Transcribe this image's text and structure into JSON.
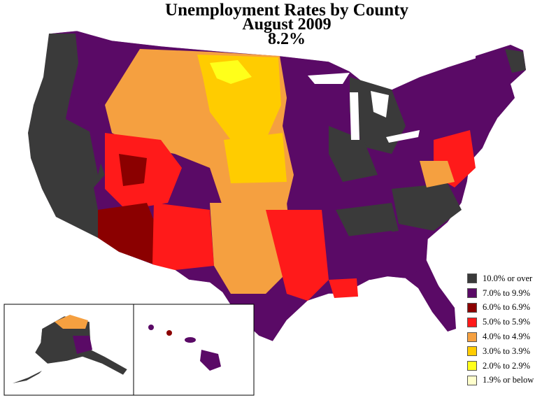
{
  "title": {
    "line1": "Unemployment Rates by County",
    "line2": "August 2009",
    "line3": "8.2%"
  },
  "legend": [
    {
      "label": "10.0% or over",
      "color": "#3a3a3a"
    },
    {
      "label": "7.0% to 9.9%",
      "color": "#5a0a66"
    },
    {
      "label": "6.0% to 6.9%",
      "color": "#8b0000"
    },
    {
      "label": "5.0% to 5.9%",
      "color": "#ff1a1a"
    },
    {
      "label": "4.0% to 4.9%",
      "color": "#f5a040"
    },
    {
      "label": "3.0% to 3.9%",
      "color": "#ffcc00"
    },
    {
      "label": "2.0% to 2.9%",
      "color": "#ffff1a"
    },
    {
      "label": "1.9% or below",
      "color": "#ffffcc"
    }
  ],
  "insets": [
    {
      "name": "Alaska"
    },
    {
      "name": "Hawaii"
    }
  ]
}
